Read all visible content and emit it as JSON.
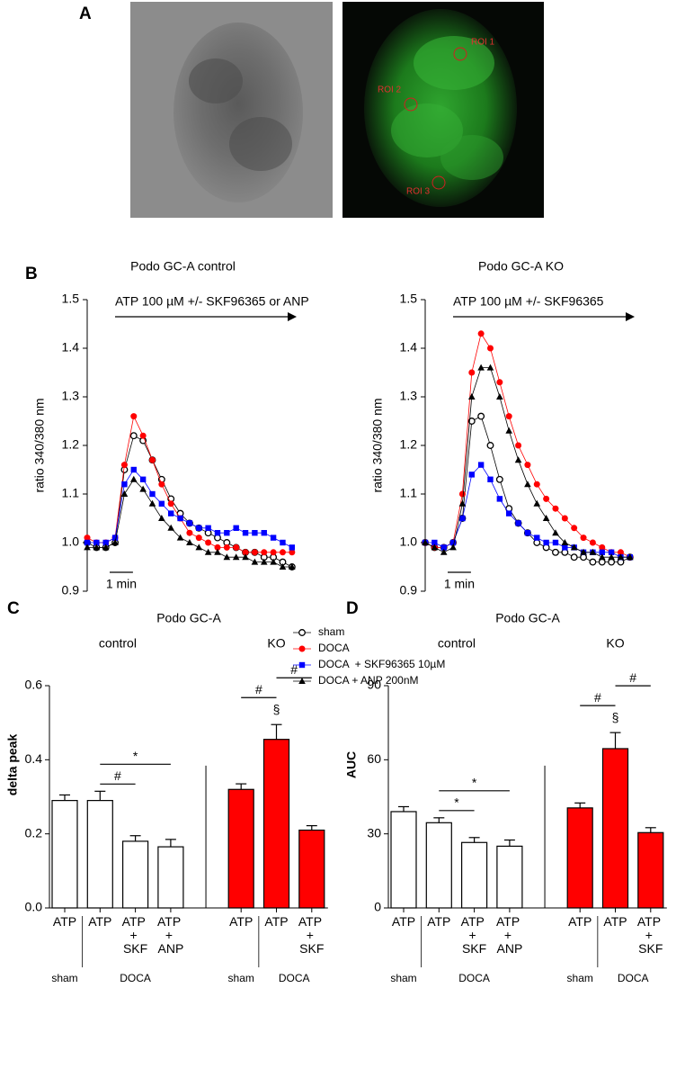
{
  "panel_labels": [
    "A",
    "B",
    "C",
    "D"
  ],
  "images": {
    "roi_labels": [
      "ROI 1",
      "ROI 2",
      "ROI 3"
    ]
  },
  "chart_data": [
    {
      "type": "line",
      "title": "Podo GC-A control",
      "ylabel": "ratio 340/380 nm",
      "annotation": "ATP 100 µM +/- SKF96365 or ANP",
      "scalebar": {
        "value": 1,
        "label": "1 min"
      },
      "x": [
        0,
        0.4,
        0.8,
        1.2,
        1.6,
        2.0,
        2.4,
        2.8,
        3.2,
        3.6,
        4.0,
        4.4,
        4.8,
        5.2,
        5.6,
        6.0,
        6.4,
        6.8,
        7.2,
        7.6,
        8.0,
        8.4,
        8.8
      ],
      "xlim": [
        0,
        9
      ],
      "ylim": [
        0.9,
        1.5
      ],
      "yticks": [
        0.9,
        {
          "value": 1,
          "label": "1.0"
        },
        1.1,
        1.2,
        1.3,
        1.4,
        1.5
      ],
      "series": [
        {
          "name": "sham",
          "color": "#000000",
          "marker": "open-circle",
          "values": [
            1.0,
            0.99,
            0.99,
            1.0,
            1.15,
            1.22,
            1.21,
            1.17,
            1.13,
            1.09,
            1.06,
            1.04,
            1.03,
            1.02,
            1.01,
            1.0,
            0.99,
            0.98,
            0.98,
            0.97,
            0.97,
            0.96,
            0.95
          ]
        },
        {
          "name": "DOCA",
          "color": "#ff0000",
          "marker": "circle",
          "values": [
            1.01,
            1.0,
            1.0,
            1.01,
            1.16,
            1.26,
            1.22,
            1.17,
            1.12,
            1.08,
            1.05,
            1.02,
            1.01,
            1.0,
            0.99,
            0.99,
            0.99,
            0.98,
            0.98,
            0.98,
            0.98,
            0.98,
            0.98
          ]
        },
        {
          "name": "DOCA  + SKF96365 10µM",
          "color": "#0000ff",
          "marker": "square",
          "values": [
            1.0,
            1.0,
            1.0,
            1.01,
            1.12,
            1.15,
            1.13,
            1.1,
            1.08,
            1.06,
            1.05,
            1.04,
            1.03,
            1.03,
            1.02,
            1.02,
            1.03,
            1.02,
            1.02,
            1.02,
            1.01,
            1.0,
            0.99
          ]
        },
        {
          "name": "DOCA + ANP 200nM",
          "color": "#000000",
          "marker": "triangle",
          "values": [
            0.99,
            0.99,
            0.99,
            1.0,
            1.1,
            1.13,
            1.11,
            1.08,
            1.05,
            1.03,
            1.01,
            1.0,
            0.99,
            0.98,
            0.98,
            0.97,
            0.97,
            0.97,
            0.96,
            0.96,
            0.96,
            0.95,
            0.95
          ]
        }
      ]
    },
    {
      "type": "line",
      "title": "Podo GC-A KO",
      "ylabel": "ratio 340/380 nm",
      "annotation": "ATP 100 µM +/- SKF96365",
      "scalebar": {
        "value": 1,
        "label": "1 min"
      },
      "x": [
        0,
        0.4,
        0.8,
        1.2,
        1.6,
        2.0,
        2.4,
        2.8,
        3.2,
        3.6,
        4.0,
        4.4,
        4.8,
        5.2,
        5.6,
        6.0,
        6.4,
        6.8,
        7.2,
        7.6,
        8.0,
        8.4,
        8.8
      ],
      "xlim": [
        0,
        9
      ],
      "ylim": [
        0.9,
        1.5
      ],
      "yticks": [
        0.9,
        {
          "value": 1,
          "label": "1.0"
        },
        1.1,
        1.2,
        1.3,
        1.4,
        1.5
      ],
      "series": [
        {
          "color": "#000000",
          "marker": "open-circle",
          "values": [
            1.0,
            0.99,
            0.99,
            1.0,
            1.05,
            1.25,
            1.26,
            1.2,
            1.13,
            1.07,
            1.04,
            1.02,
            1.0,
            0.99,
            0.98,
            0.98,
            0.97,
            0.97,
            0.96,
            0.96,
            0.96,
            0.96,
            0.97
          ]
        },
        {
          "color": "#ff0000",
          "marker": "circle",
          "values": [
            1.0,
            0.99,
            0.99,
            1.0,
            1.1,
            1.35,
            1.43,
            1.4,
            1.33,
            1.26,
            1.2,
            1.16,
            1.12,
            1.09,
            1.07,
            1.05,
            1.03,
            1.01,
            1.0,
            0.99,
            0.98,
            0.98,
            0.97
          ]
        },
        {
          "color": "#0000ff",
          "marker": "square",
          "values": [
            1.0,
            1.0,
            0.99,
            1.0,
            1.05,
            1.14,
            1.16,
            1.13,
            1.09,
            1.06,
            1.04,
            1.02,
            1.01,
            1.0,
            1.0,
            0.99,
            0.99,
            0.98,
            0.98,
            0.98,
            0.98,
            0.97,
            0.97
          ]
        },
        {
          "color": "#000000",
          "marker": "triangle",
          "values": [
            1.0,
            0.99,
            0.98,
            0.99,
            1.08,
            1.3,
            1.36,
            1.36,
            1.3,
            1.23,
            1.17,
            1.12,
            1.08,
            1.05,
            1.02,
            1.0,
            0.99,
            0.98,
            0.98,
            0.97,
            0.97,
            0.97,
            0.97
          ]
        }
      ]
    },
    {
      "type": "bar",
      "title": "Podo GC-A",
      "ylabel": "delta peak",
      "categories": [
        "ATP",
        "ATP",
        "ATP + SKF",
        "ATP + ANP",
        "ATP",
        "ATP",
        "ATP + SKF"
      ],
      "values": [
        0.29,
        0.29,
        0.18,
        0.165,
        0.32,
        0.455,
        0.21
      ],
      "errors": [
        0.015,
        0.025,
        0.015,
        0.02,
        0.015,
        0.04,
        0.012
      ],
      "colors": [
        "#ffffff",
        "#ffffff",
        "#ffffff",
        "#ffffff",
        "#ff0000",
        "#ff0000",
        "#ff0000"
      ],
      "groups": [
        {
          "label": "control",
          "members": [
            0,
            1,
            2,
            3
          ]
        },
        {
          "label": "KO",
          "members": [
            4,
            5,
            6
          ]
        }
      ],
      "conditions": [
        {
          "label": "sham",
          "members": [
            0
          ]
        },
        {
          "label": "DOCA",
          "members": [
            1,
            2,
            3
          ]
        },
        {
          "label": "sham",
          "members": [
            4
          ]
        },
        {
          "label": "DOCA",
          "members": [
            5,
            6
          ]
        }
      ],
      "significance": [
        {
          "text": "#",
          "from": 1,
          "to": 2
        },
        {
          "text": "*",
          "from": 1,
          "to": 3
        },
        {
          "text": "§",
          "from": 5,
          "to": 5
        },
        {
          "text": "#",
          "from": 4,
          "to": 5
        },
        {
          "text": "#",
          "from": 5,
          "to": 6
        }
      ],
      "ylim": [
        0,
        0.6
      ],
      "yticks": [
        {
          "value": 0,
          "label": "0.0"
        },
        0.2,
        0.4,
        0.6
      ]
    },
    {
      "type": "bar",
      "title": "Podo GC-A",
      "ylabel": "AUC",
      "categories": [
        "ATP",
        "ATP",
        "ATP + SKF",
        "ATP + ANP",
        "ATP",
        "ATP",
        "ATP + SKF"
      ],
      "values": [
        39,
        34.5,
        26.5,
        25,
        40.5,
        64.5,
        30.5
      ],
      "errors": [
        2,
        2,
        2,
        2.5,
        2,
        6.5,
        2
      ],
      "colors": [
        "#ffffff",
        "#ffffff",
        "#ffffff",
        "#ffffff",
        "#ff0000",
        "#ff0000",
        "#ff0000"
      ],
      "groups": [
        {
          "label": "control",
          "members": [
            0,
            1,
            2,
            3
          ]
        },
        {
          "label": "KO",
          "members": [
            4,
            5,
            6
          ]
        }
      ],
      "conditions": [
        {
          "label": "sham",
          "members": [
            0
          ]
        },
        {
          "label": "DOCA",
          "members": [
            1,
            2,
            3
          ]
        },
        {
          "label": "sham",
          "members": [
            4
          ]
        },
        {
          "label": "DOCA",
          "members": [
            5,
            6
          ]
        }
      ],
      "significance": [
        {
          "text": "*",
          "from": 1,
          "to": 2
        },
        {
          "text": "*",
          "from": 1,
          "to": 3
        },
        {
          "text": "§",
          "from": 5,
          "to": 5
        },
        {
          "text": "#",
          "from": 4,
          "to": 5
        },
        {
          "text": "#",
          "from": 5,
          "to": 6
        }
      ],
      "ylim": [
        0,
        90
      ],
      "yticks": [
        0,
        30,
        60,
        90
      ]
    }
  ]
}
